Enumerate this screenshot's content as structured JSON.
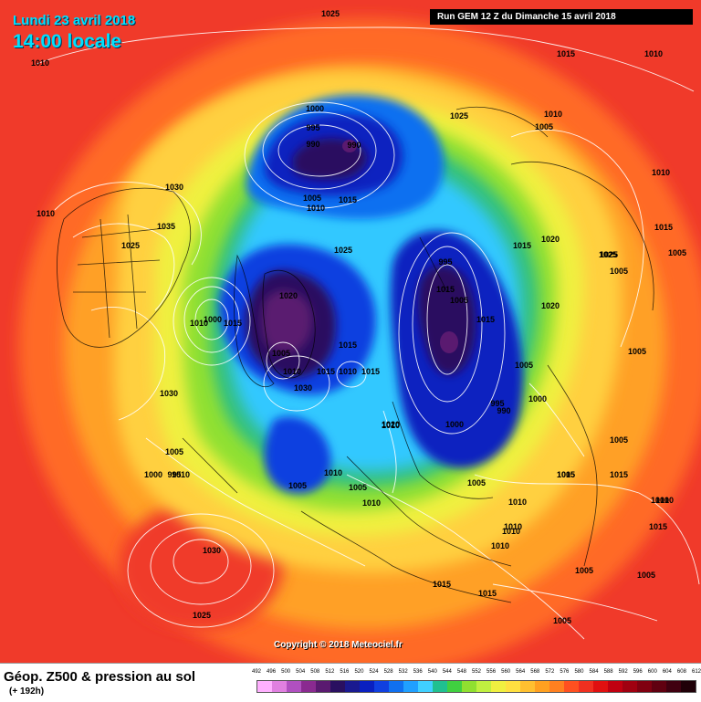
{
  "header": {
    "date": "Lundi 23 avril 2018",
    "time": "14:00 locale",
    "run": "Run GEM 12 Z du Dimanche 15 avril 2018"
  },
  "map": {
    "copyright": "Copyright © 2018 Meteociel.fr",
    "pressure_labels": [
      "1025",
      "1010",
      "1015",
      "1010",
      "1000",
      "995",
      "990",
      "990",
      "1025",
      "1010",
      "1005",
      "1005",
      "1010",
      "1015",
      "1030",
      "1010",
      "1035",
      "1025",
      "1010",
      "1015",
      "1020",
      "1025",
      "1005",
      "1025",
      "1015",
      "1020",
      "995",
      "1015",
      "1005",
      "1020",
      "1015",
      "1000",
      "1010",
      "1015",
      "1030",
      "1005",
      "1010",
      "1015",
      "1030",
      "1010",
      "1015",
      "1005",
      "1015",
      "1005",
      "1010",
      "1000",
      "995",
      "990",
      "1000",
      "1005",
      "1005",
      "1020",
      "1010",
      "1000",
      "995",
      "1005",
      "1010",
      "1010",
      "1005",
      "1015",
      "1005",
      "1010",
      "1015",
      "1010",
      "1010",
      "1010",
      "1005",
      "1030",
      "1025",
      "1015",
      "1015",
      "1005",
      "1005",
      "1005",
      "1005",
      "1010",
      "1025",
      "1010",
      "1015"
    ]
  },
  "footer": {
    "title": "Géop. Z500 & pression au sol",
    "subtitle": "(+ 192h)"
  },
  "legend": {
    "values": [
      "492",
      "496",
      "500",
      "504",
      "508",
      "512",
      "516",
      "520",
      "524",
      "528",
      "532",
      "536",
      "540",
      "544",
      "548",
      "552",
      "556",
      "560",
      "564",
      "568",
      "572",
      "576",
      "580",
      "584",
      "588",
      "592",
      "596",
      "600",
      "604",
      "608",
      "612"
    ],
    "colors": [
      "#ffb0ff",
      "#e080e0",
      "#b050c0",
      "#8a2a90",
      "#5a1a70",
      "#2a1060",
      "#1a1a90",
      "#0a20c0",
      "#1040e0",
      "#1070f0",
      "#20a0ff",
      "#40d0ff",
      "#20c090",
      "#40d040",
      "#90e030",
      "#c0f040",
      "#f0f040",
      "#ffe040",
      "#ffc030",
      "#ffa020",
      "#ff8020",
      "#ff5020",
      "#f03020",
      "#e01010",
      "#c00010",
      "#a00010",
      "#800010",
      "#600010",
      "#400010",
      "#200008"
    ]
  }
}
